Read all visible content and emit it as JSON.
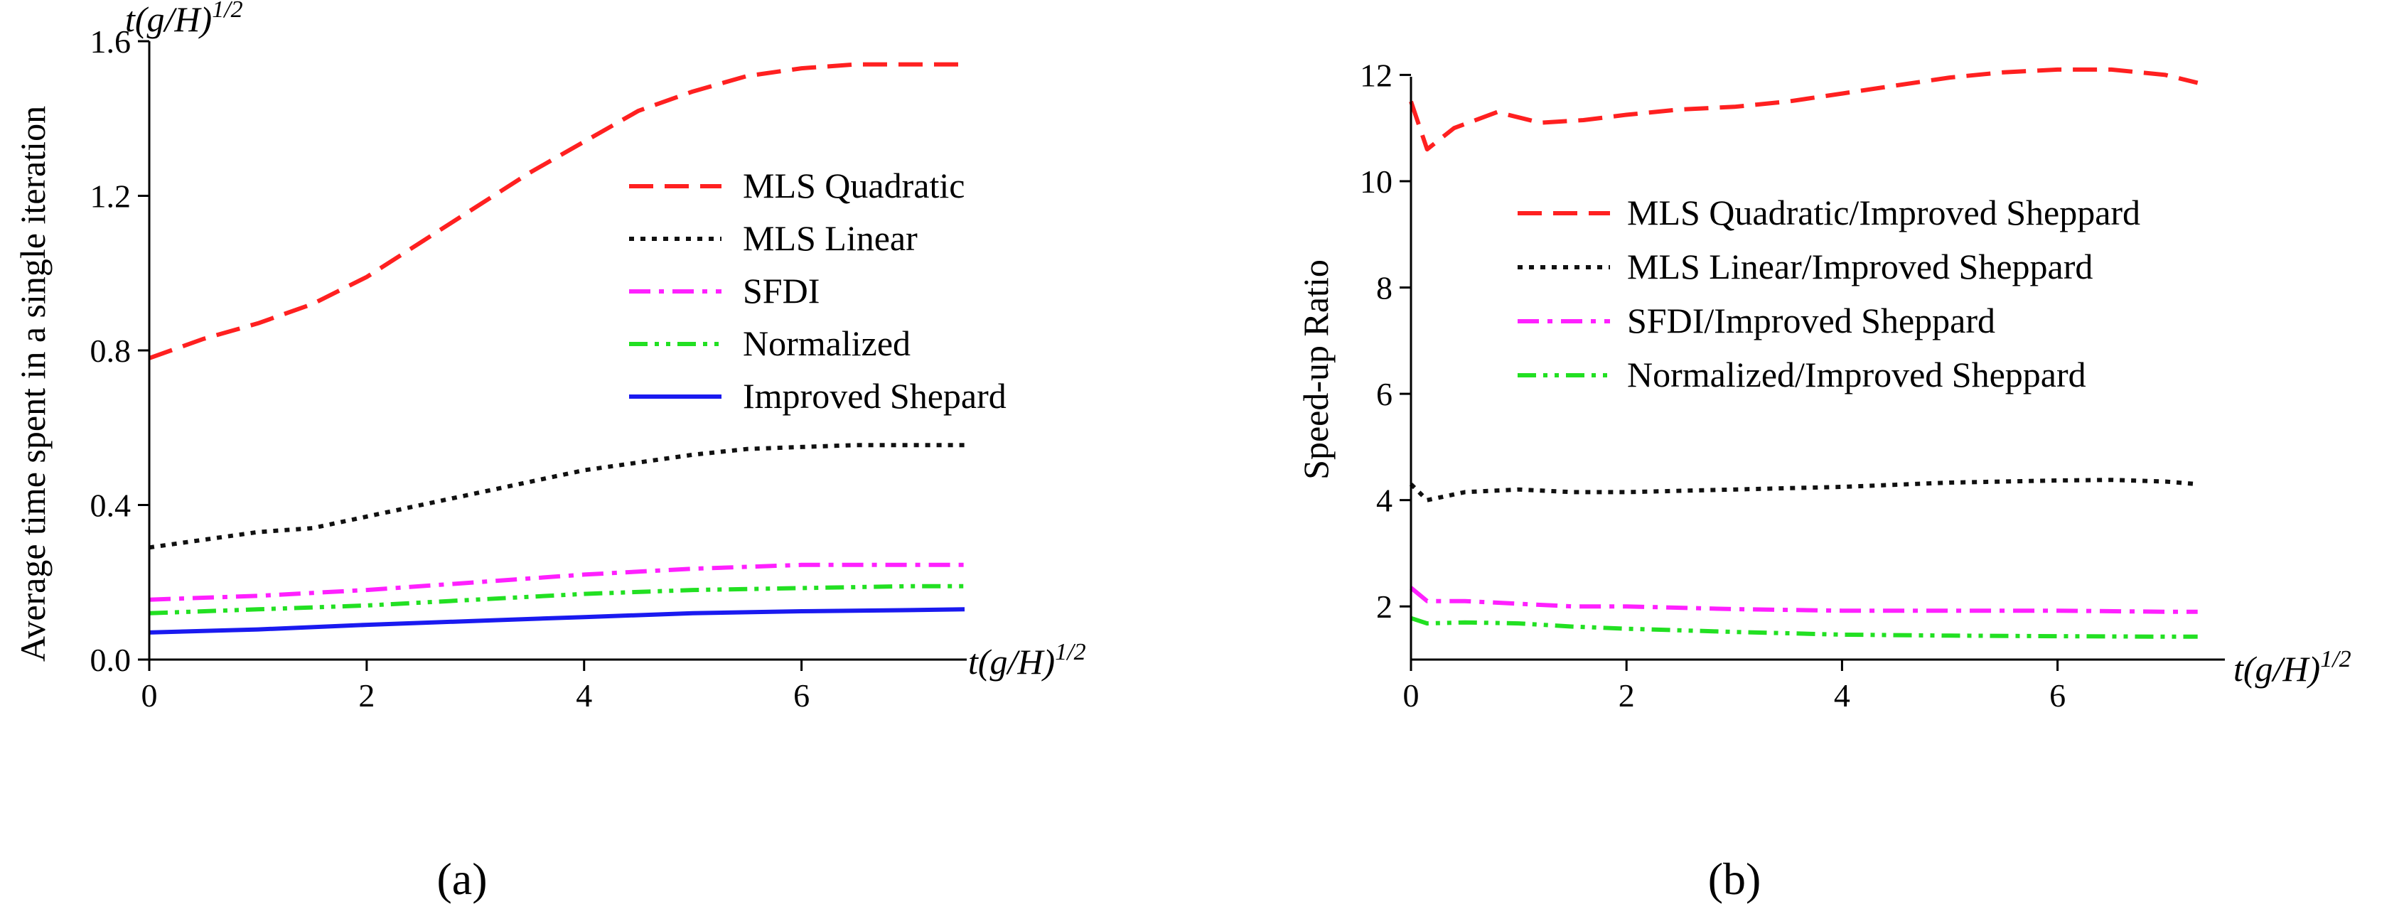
{
  "figure": {
    "panel_a_label": "(a)",
    "panel_b_label": "(b)"
  },
  "chart_data": [
    {
      "type": "line",
      "panel": "a",
      "title": "",
      "xlabel": "t(g/H)^1/2",
      "xlabel_parts": {
        "base": "t(g/H)",
        "sup": "1/2"
      },
      "top_label_parts": {
        "base": "t(g/H)",
        "sup": "1/2"
      },
      "ylabel": "Average time spent in a single iteration",
      "xlim": [
        0,
        7.5
      ],
      "ylim": [
        0,
        1.6
      ],
      "xticks": [
        0,
        2,
        4,
        6
      ],
      "xtick_labels": [
        "0",
        "2",
        "4",
        "6"
      ],
      "yticks": [
        0,
        0.4,
        0.8,
        1.2,
        1.6
      ],
      "ytick_labels": [
        "0.0",
        "0.4",
        "0.8",
        "1.2",
        "1.6"
      ],
      "grid": false,
      "legend_position": "upper-right",
      "series": [
        {
          "name": "MLS Quadratic",
          "color": "#ff2020",
          "style": "dash",
          "x": [
            0,
            0.5,
            1,
            1.5,
            2,
            2.5,
            3,
            3.5,
            4,
            4.5,
            5,
            5.5,
            6,
            6.5,
            7,
            7.5
          ],
          "y": [
            0.78,
            0.83,
            0.87,
            0.92,
            0.99,
            1.08,
            1.17,
            1.26,
            1.34,
            1.42,
            1.47,
            1.51,
            1.53,
            1.54,
            1.54,
            1.54
          ]
        },
        {
          "name": "MLS Linear",
          "color": "#111111",
          "style": "dot",
          "x": [
            0,
            0.5,
            1,
            1.5,
            2,
            2.5,
            3,
            3.5,
            4,
            4.5,
            5,
            5.5,
            6,
            6.5,
            7,
            7.5
          ],
          "y": [
            0.29,
            0.31,
            0.33,
            0.34,
            0.37,
            0.4,
            0.43,
            0.46,
            0.49,
            0.51,
            0.53,
            0.545,
            0.55,
            0.555,
            0.555,
            0.555
          ]
        },
        {
          "name": "SFDI",
          "color": "#ff20ff",
          "style": "dashdot",
          "x": [
            0,
            1,
            2,
            3,
            4,
            5,
            6,
            7,
            7.5
          ],
          "y": [
            0.155,
            0.165,
            0.18,
            0.2,
            0.22,
            0.235,
            0.245,
            0.245,
            0.245
          ]
        },
        {
          "name": "Normalized",
          "color": "#22e022",
          "style": "dashdotdot",
          "x": [
            0,
            1,
            2,
            3,
            4,
            5,
            6,
            7,
            7.5
          ],
          "y": [
            0.12,
            0.13,
            0.14,
            0.155,
            0.17,
            0.18,
            0.185,
            0.19,
            0.19
          ]
        },
        {
          "name": "Improved Shepard",
          "color": "#1a1af0",
          "style": "solid",
          "x": [
            0,
            1,
            2,
            3,
            4,
            5,
            6,
            7,
            7.5
          ],
          "y": [
            0.07,
            0.078,
            0.09,
            0.1,
            0.11,
            0.12,
            0.125,
            0.128,
            0.13
          ]
        }
      ]
    },
    {
      "type": "line",
      "panel": "b",
      "title": "",
      "xlabel": "t(g/H)^1/2",
      "xlabel_parts": {
        "base": "t(g/H)",
        "sup": "1/2"
      },
      "ylabel": "Speed-up Ratio",
      "xlim": [
        0,
        7.5
      ],
      "ylim": [
        1,
        12.5
      ],
      "xticks": [
        0,
        2,
        4,
        6
      ],
      "xtick_labels": [
        "0",
        "2",
        "4",
        "6"
      ],
      "yticks": [
        2,
        4,
        6,
        8,
        10,
        12
      ],
      "ytick_labels": [
        "2",
        "4",
        "6",
        "8",
        "10",
        "12"
      ],
      "grid": false,
      "legend_position": "upper-right",
      "series": [
        {
          "name": "MLS Quadratic/Improved Sheppard",
          "color": "#ff2020",
          "style": "dash",
          "x": [
            0,
            0.15,
            0.4,
            0.8,
            1.2,
            1.6,
            2,
            2.5,
            3,
            3.5,
            4,
            4.5,
            5,
            5.5,
            6,
            6.5,
            7,
            7.3
          ],
          "y": [
            11.5,
            10.6,
            11.0,
            11.3,
            11.1,
            11.15,
            11.25,
            11.35,
            11.4,
            11.5,
            11.65,
            11.8,
            11.95,
            12.05,
            12.1,
            12.1,
            12.0,
            11.85
          ]
        },
        {
          "name": "MLS Linear/Improved Sheppard",
          "color": "#111111",
          "style": "dot",
          "x": [
            0,
            0.15,
            0.5,
            1,
            1.5,
            2,
            3,
            4,
            5,
            6,
            6.5,
            7,
            7.3
          ],
          "y": [
            4.3,
            4.0,
            4.15,
            4.2,
            4.15,
            4.15,
            4.2,
            4.25,
            4.33,
            4.37,
            4.38,
            4.35,
            4.3
          ]
        },
        {
          "name": "SFDI/Improved Sheppard",
          "color": "#ff20ff",
          "style": "dashdot",
          "x": [
            0,
            0.15,
            0.5,
            1,
            1.5,
            2,
            3,
            4,
            5,
            6,
            7,
            7.3
          ],
          "y": [
            2.35,
            2.1,
            2.1,
            2.05,
            2.0,
            2.0,
            1.95,
            1.92,
            1.92,
            1.92,
            1.9,
            1.9
          ]
        },
        {
          "name": "Normalized/Improved Sheppard",
          "color": "#22e022",
          "style": "dashdotdot",
          "x": [
            0,
            0.15,
            0.5,
            1,
            1.5,
            2,
            3,
            4,
            5,
            6,
            7,
            7.3
          ],
          "y": [
            1.78,
            1.68,
            1.7,
            1.68,
            1.62,
            1.58,
            1.52,
            1.47,
            1.45,
            1.44,
            1.43,
            1.43
          ]
        }
      ]
    }
  ]
}
